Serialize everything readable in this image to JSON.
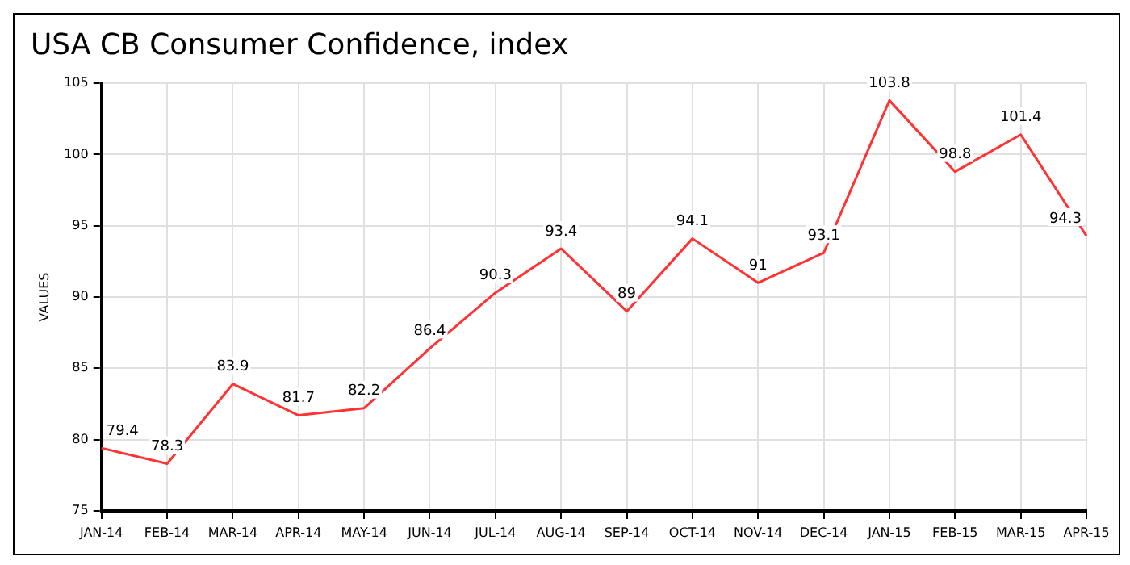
{
  "chart_data": {
    "type": "line",
    "title": "USA CB Consumer Confidence, index",
    "ylabel": "VALUES",
    "categories": [
      "JAN-14",
      "FEB-14",
      "MAR-14",
      "APR-14",
      "MAY-14",
      "JUN-14",
      "JUL-14",
      "AUG-14",
      "SEP-14",
      "OCT-14",
      "NOV-14",
      "DEC-14",
      "JAN-15",
      "FEB-15",
      "MAR-15",
      "APR-15"
    ],
    "series": [
      {
        "color": "#ff3333",
        "values": [
          79.4,
          78.3,
          83.9,
          81.7,
          82.2,
          86.4,
          90.3,
          93.4,
          89,
          94.1,
          91,
          93.1,
          103.8,
          98.8,
          101.4,
          94.3
        ]
      }
    ],
    "ylim": [
      75,
      105
    ],
    "yticks": [
      75,
      80,
      85,
      90,
      95,
      100,
      105
    ],
    "grid": true,
    "data_labels": true,
    "legend": false,
    "marker": "none",
    "line_style": "solid"
  }
}
